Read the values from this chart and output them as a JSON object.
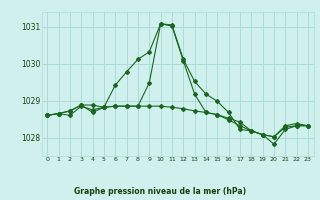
{
  "title": "Graphe pression niveau de la mer (hPa)",
  "background_color": "#cff0ec",
  "grid_color": "#aaddd8",
  "line_color": "#1a6620",
  "xlim": [
    -0.5,
    23.5
  ],
  "ylim": [
    1027.5,
    1031.4
  ],
  "yticks": [
    1028,
    1029,
    1030,
    1031
  ],
  "xticks": [
    0,
    1,
    2,
    3,
    4,
    5,
    6,
    7,
    8,
    9,
    10,
    11,
    12,
    13,
    14,
    15,
    16,
    17,
    18,
    19,
    20,
    21,
    22,
    23
  ],
  "hours": [
    0,
    1,
    2,
    3,
    4,
    5,
    6,
    7,
    8,
    9,
    10,
    11,
    12,
    13,
    14,
    15,
    16,
    17,
    18,
    19,
    20,
    21,
    22,
    23
  ],
  "line1": [
    1028.6,
    1028.65,
    1028.6,
    1028.85,
    1028.75,
    1028.82,
    1028.85,
    1028.85,
    1028.85,
    1028.85,
    1028.85,
    1028.82,
    1028.78,
    1028.72,
    1028.68,
    1028.62,
    1028.48,
    1028.32,
    1028.18,
    1028.08,
    1028.02,
    1028.28,
    1028.32,
    1028.32
  ],
  "line2": [
    1028.6,
    1028.65,
    1028.72,
    1028.88,
    1028.68,
    1028.82,
    1029.42,
    1029.78,
    1030.12,
    1030.32,
    1031.08,
    1031.05,
    1030.12,
    1029.52,
    1029.18,
    1028.98,
    1028.68,
    1028.22,
    1028.18,
    1028.08,
    1027.82,
    1028.22,
    1028.32,
    1028.32
  ],
  "line3": [
    1028.6,
    1028.65,
    1028.72,
    1028.88,
    1028.88,
    1028.82,
    1028.85,
    1028.85,
    1028.85,
    1029.48,
    1031.08,
    1031.02,
    1030.08,
    1029.18,
    1028.68,
    1028.62,
    1028.52,
    1028.42,
    1028.18,
    1028.08,
    1028.02,
    1028.32,
    1028.38,
    1028.32
  ]
}
